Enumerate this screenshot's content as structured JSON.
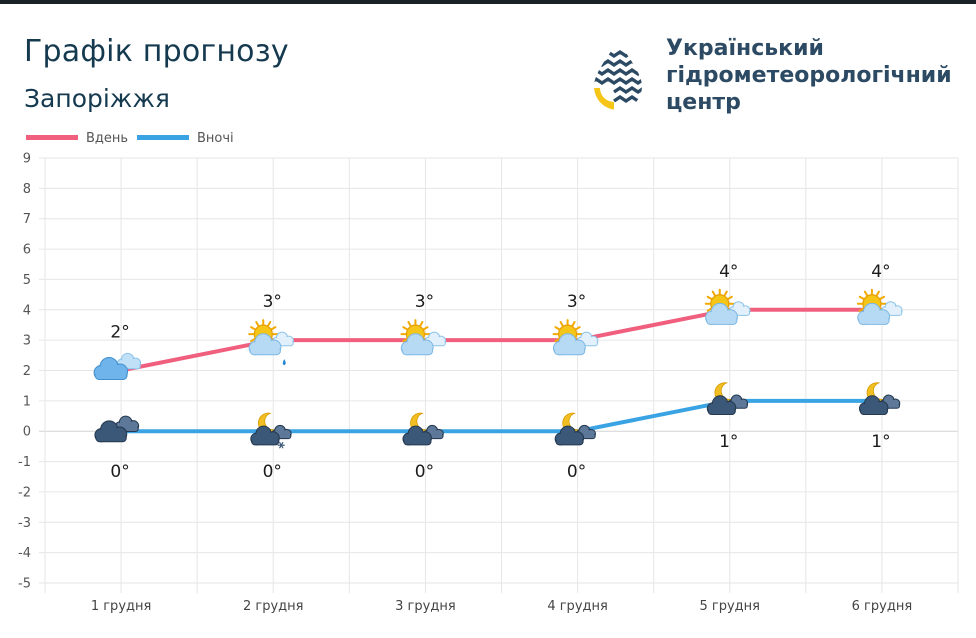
{
  "header": {
    "title": "Графік прогнозу",
    "city": "Запоріжжя"
  },
  "organization": {
    "name_line1": "Український",
    "name_line2": "гідрометеорологічний",
    "name_line3": "центр"
  },
  "colors": {
    "day": "#f0607e",
    "night": "#3aa3e4",
    "text_dark": "#153a4f",
    "logo_yellow": "#f5c518",
    "logo_navy": "#2c4a63"
  },
  "chart_data": {
    "type": "line",
    "categories": [
      "1 грудня",
      "2 грудня",
      "3 грудня",
      "4 грудня",
      "5 грудня",
      "6 грудня"
    ],
    "series": [
      {
        "name": "Вдень",
        "values": [
          2,
          3,
          3,
          3,
          4,
          4
        ],
        "labels": [
          "2°",
          "3°",
          "3°",
          "3°",
          "4°",
          "4°"
        ],
        "icons": [
          "cloudy-icon",
          "partly-cloudy-rain-icon",
          "partly-cloudy-sun-icon",
          "partly-cloudy-sun-icon",
          "partly-cloudy-sun-icon",
          "partly-cloudy-sun-icon"
        ]
      },
      {
        "name": "Вночі",
        "values": [
          0,
          0,
          0,
          0,
          1,
          1
        ],
        "labels": [
          "0°",
          "0°",
          "0°",
          "0°",
          "1°",
          "1°"
        ],
        "icons": [
          "overcast-night-icon",
          "night-cloudy-snow-icon",
          "night-cloudy-icon",
          "night-cloudy-icon",
          "night-cloudy-icon",
          "night-cloudy-icon"
        ]
      }
    ],
    "ylim": [
      -5,
      9
    ],
    "yticks": [
      "9",
      "8",
      "7",
      "6",
      "5",
      "4",
      "3",
      "2",
      "1",
      "0",
      "-1",
      "-2",
      "-3",
      "-4",
      "-5"
    ],
    "grid": true,
    "legend": "top-left"
  }
}
